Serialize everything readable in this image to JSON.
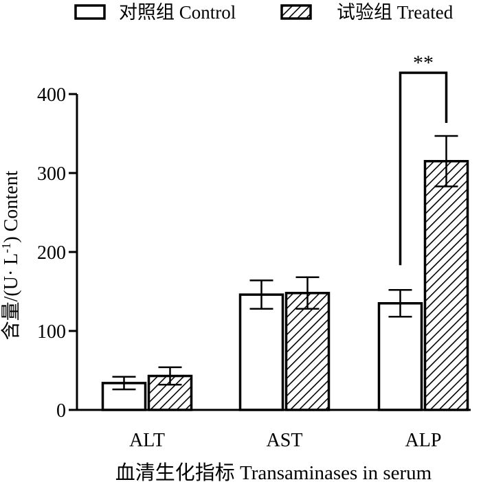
{
  "chart_data": {
    "type": "bar",
    "title": "",
    "xlabel": "血清生化指标 Transaminases in serum",
    "ylabel_parts": {
      "main": "含量/(U· L",
      "superscript": "-1",
      "end": ") Content"
    },
    "ylim": [
      0,
      400
    ],
    "yticks": [
      0,
      100,
      200,
      300,
      400
    ],
    "ytick_labels": [
      "0",
      "100",
      "200",
      "300",
      "400"
    ],
    "categories": [
      "ALT",
      "AST",
      "ALP"
    ],
    "series": [
      {
        "name": "对照组 Control",
        "values": [
          34,
          146,
          135
        ],
        "errors": [
          8,
          18,
          17
        ],
        "fill": "plain"
      },
      {
        "name": "试验组 Treated",
        "values": [
          43,
          148,
          315
        ],
        "errors": [
          11,
          20,
          32
        ],
        "fill": "hatched"
      }
    ],
    "legend_position": "top",
    "significance": [
      {
        "category": "ALP",
        "label": "**"
      }
    ],
    "colors": {
      "stroke": "#000000",
      "background": "#ffffff"
    }
  }
}
